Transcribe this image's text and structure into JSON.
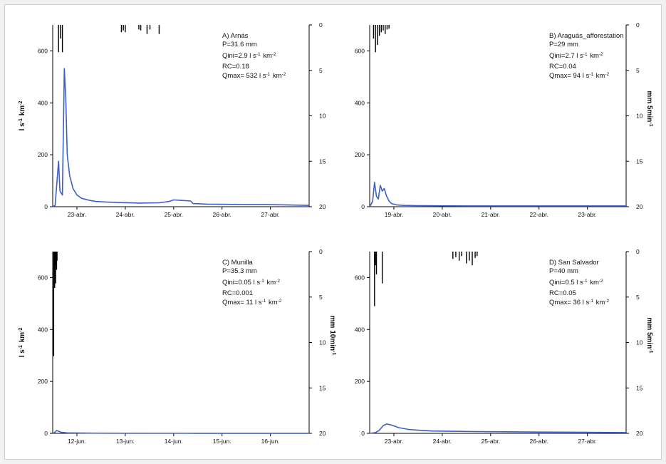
{
  "figure": {
    "colors": {
      "flow": "#3d5fc4",
      "rain": "#000000",
      "axis": "#000000"
    }
  },
  "chart_data": [
    {
      "type": "line",
      "panel": "A",
      "annotations": [
        "A) Arnás",
        "P=31.6 mm",
        "Qini=2.9 l s-1 km-2",
        "RC=0.18",
        "Qmax= 532 l s-1 km-2"
      ],
      "ylabel_left": "l s-1 km-2",
      "ylabel_right": "",
      "x_ticks": [
        "23-abr.",
        "24-abr.",
        "25-abr.",
        "26-abr.",
        "27-abr."
      ],
      "x_ticks_pos": [
        0.5,
        1.5,
        2.5,
        3.5,
        4.5
      ],
      "xlim": [
        0,
        5.3
      ],
      "ylim_left": [
        0,
        700
      ],
      "yticks_left": [
        0,
        200,
        400,
        600
      ],
      "ylim_right": [
        20,
        0
      ],
      "yticks_right": [
        0,
        5,
        10,
        15,
        20
      ],
      "series": [
        {
          "x": [
            0.0,
            0.05,
            0.12,
            0.15,
            0.2,
            0.24,
            0.27,
            0.3,
            0.35,
            0.42,
            0.5,
            0.6,
            0.75,
            0.9,
            1.1,
            1.4,
            1.8,
            2.2,
            2.4,
            2.5,
            2.7,
            2.85,
            2.9,
            3.2,
            3.6,
            4.0,
            4.4,
            4.8,
            5.3
          ],
          "y": [
            0,
            5,
            175,
            60,
            45,
            532,
            420,
            200,
            120,
            70,
            45,
            32,
            25,
            20,
            18,
            16,
            14,
            15,
            20,
            26,
            24,
            22,
            12,
            10,
            9,
            8,
            8,
            7,
            5
          ]
        }
      ],
      "rain": {
        "x": [
          0.12,
          0.16,
          0.2,
          1.42,
          1.46,
          1.5,
          1.78,
          1.82,
          1.95,
          2.01,
          2.2
        ],
        "y": [
          3,
          1.5,
          3,
          0.8,
          0.6,
          0.8,
          0.5,
          0.6,
          1.0,
          0.5,
          1.0
        ]
      }
    },
    {
      "type": "line",
      "panel": "B",
      "annotations": [
        "B) Araguás_afforestation",
        "P=29 mm",
        "Qini=2.7 l s-1 km-2",
        "RC=0.04",
        "Qmax= 94 l s-1 km-2"
      ],
      "ylabel_left": "",
      "ylabel_right": "mm 5min-1",
      "x_ticks": [
        "19-abr.",
        "20-abr.",
        "21-abr.",
        "22-abr.",
        "23-abr."
      ],
      "x_ticks_pos": [
        0.5,
        1.5,
        2.5,
        3.5,
        4.5
      ],
      "xlim": [
        0,
        5.3
      ],
      "ylim_left": [
        0,
        700
      ],
      "yticks_left": [
        0,
        200,
        400,
        600
      ],
      "ylim_right": [
        20,
        0
      ],
      "yticks_right": [
        0,
        5,
        10,
        15,
        20
      ],
      "series": [
        {
          "x": [
            0.0,
            0.06,
            0.1,
            0.14,
            0.18,
            0.22,
            0.26,
            0.3,
            0.35,
            0.4,
            0.45,
            0.55,
            0.7,
            1.0,
            2.0,
            3.0,
            4.0,
            5.3
          ],
          "y": [
            0,
            20,
            94,
            40,
            30,
            82,
            60,
            70,
            40,
            22,
            12,
            7,
            5,
            4,
            3,
            3,
            3,
            3
          ]
        }
      ],
      "rain": {
        "x": [
          0.08,
          0.12,
          0.16,
          0.2,
          0.24,
          0.28,
          0.32,
          0.36,
          0.4
        ],
        "y": [
          1.5,
          3,
          2.2,
          1.2,
          0.8,
          0.6,
          1.0,
          0.5,
          0.4
        ]
      }
    },
    {
      "type": "line",
      "panel": "C",
      "annotations": [
        "C) Munilla",
        "P=35.3 mm",
        "Qini=0.05 l s-1 km-2",
        "RC=0.001",
        "Qmax= 11 l s-1 km-2"
      ],
      "ylabel_left": "l s-1 km-2",
      "ylabel_right": "mm 10min-1",
      "x_ticks": [
        "12-jun.",
        "13-jun.",
        "14-jun.",
        "15-jun.",
        "16-jun."
      ],
      "x_ticks_pos": [
        0.5,
        1.5,
        2.5,
        3.5,
        4.5
      ],
      "xlim": [
        0,
        5.3
      ],
      "ylim_left": [
        0,
        700
      ],
      "yticks_left": [
        0,
        200,
        400,
        600
      ],
      "ylim_right": [
        20,
        0
      ],
      "yticks_right": [
        0,
        5,
        10,
        15,
        20
      ],
      "series": [
        {
          "x": [
            0.0,
            0.04,
            0.08,
            0.12,
            0.18,
            0.3,
            0.6,
            1.5,
            3.0,
            5.3
          ],
          "y": [
            0,
            3,
            11,
            8,
            4,
            2,
            1,
            0.5,
            0.3,
            0.2
          ]
        }
      ],
      "rain": {
        "x": [
          0.02,
          0.03,
          0.04,
          0.05,
          0.06,
          0.07,
          0.08,
          0.09
        ],
        "y": [
          11.5,
          2,
          4,
          1.5,
          3.5,
          1.5,
          2,
          1
        ]
      }
    },
    {
      "type": "line",
      "panel": "D",
      "annotations": [
        "D) San Salvador",
        "P=40 mm",
        "Qini=0.5 l s-1 km-2",
        "RC=0.05",
        "Qmax= 36 l s-1 km-2"
      ],
      "ylabel_left": "",
      "ylabel_right": "mm 5min-1",
      "x_ticks": [
        "23-abr.",
        "24-abr.",
        "25-abr.",
        "26-abr.",
        "27-abr."
      ],
      "x_ticks_pos": [
        0.5,
        1.5,
        2.5,
        3.5,
        4.5
      ],
      "xlim": [
        0,
        5.3
      ],
      "ylim_left": [
        0,
        700
      ],
      "yticks_left": [
        0,
        200,
        400,
        600
      ],
      "ylim_right": [
        20,
        0
      ],
      "yticks_right": [
        0,
        5,
        10,
        15,
        20
      ],
      "series": [
        {
          "x": [
            0.0,
            0.12,
            0.2,
            0.28,
            0.35,
            0.45,
            0.6,
            0.8,
            1.0,
            1.3,
            1.7,
            2.2,
            2.8,
            3.5,
            4.5,
            5.3
          ],
          "y": [
            0,
            3,
            12,
            30,
            36,
            32,
            22,
            15,
            12,
            9,
            8,
            7,
            6,
            5,
            4,
            3
          ]
        }
      ],
      "rain": {
        "x": [
          0.1,
          0.12,
          0.14,
          0.26,
          1.72,
          1.78,
          1.85,
          1.9,
          2.0,
          2.06,
          2.12,
          2.18,
          2.22
        ],
        "y": [
          6,
          1.5,
          2.5,
          3.5,
          0.8,
          0.6,
          1.0,
          0.5,
          1.3,
          1.0,
          1.5,
          0.7,
          0.5
        ]
      }
    }
  ]
}
